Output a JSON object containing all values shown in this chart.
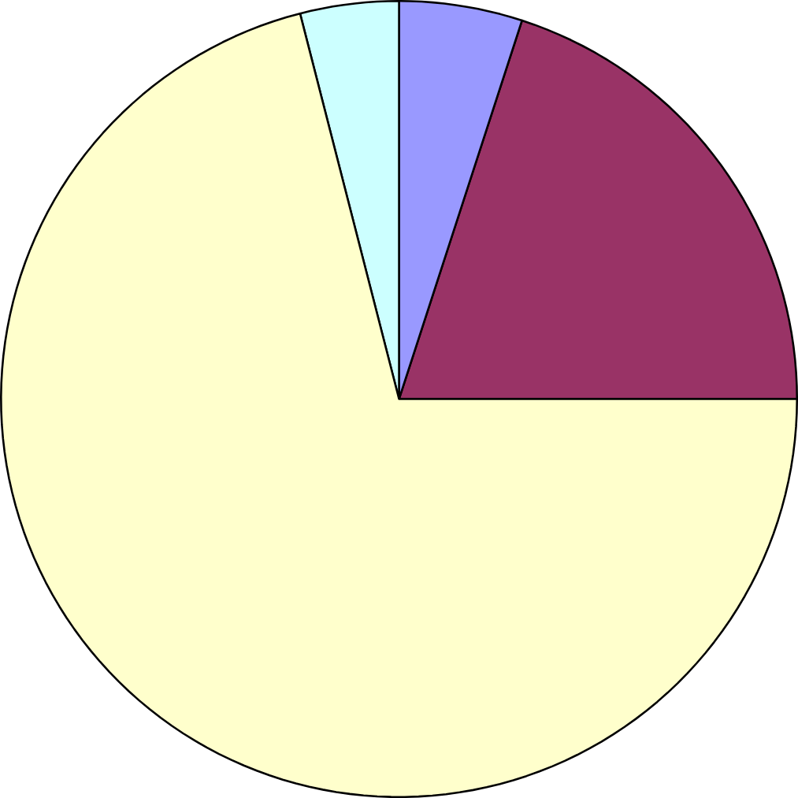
{
  "chart_data": {
    "type": "pie",
    "categories": [
      null,
      null,
      null,
      null
    ],
    "values": [
      20,
      5,
      4,
      71
    ],
    "colors": [
      "#993366",
      "#9999ff",
      "#ccffff",
      "#ffffcc"
    ]
  }
}
